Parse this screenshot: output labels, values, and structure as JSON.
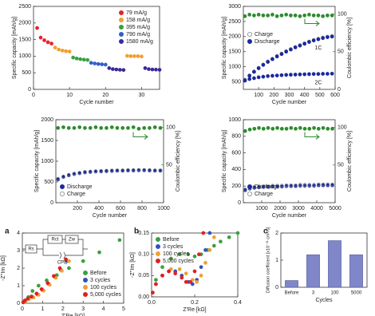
{
  "chart_data": [
    {
      "type": "scatter",
      "xlabel": "Cycle number",
      "ylabel": "Specific capacity [mAh/g]",
      "xlim": [
        0,
        35
      ],
      "xticks": [
        0,
        10,
        20,
        30
      ],
      "ylim": [
        0,
        2500
      ],
      "yticks": [
        0,
        500,
        1000,
        1500,
        2000,
        2500
      ],
      "legend": "upper right",
      "series": [
        {
          "name": "79 mA/g",
          "color": "#e8202a",
          "x": [
            1,
            2,
            3,
            4,
            5
          ],
          "values": [
            1850,
            1560,
            1480,
            1420,
            1380
          ]
        },
        {
          "name": "158 mA/g",
          "color": "#f0a030",
          "x": [
            6,
            7,
            8,
            9,
            10,
            26,
            27,
            28,
            29,
            30
          ],
          "values": [
            1260,
            1200,
            1170,
            1150,
            1140,
            1010,
            1000,
            1000,
            1000,
            990
          ]
        },
        {
          "name": "395 mA/g",
          "color": "#3aa040",
          "x": [
            11,
            12,
            13,
            14,
            15
          ],
          "values": [
            960,
            930,
            910,
            895,
            885
          ]
        },
        {
          "name": "790 mA/g",
          "color": "#3060c8",
          "x": [
            16,
            17,
            18,
            19,
            20
          ],
          "values": [
            800,
            780,
            765,
            755,
            745
          ]
        },
        {
          "name": "1580 mA/g",
          "color": "#3a2a9a",
          "x": [
            21,
            22,
            23,
            24,
            25,
            31,
            32,
            33,
            34,
            35
          ],
          "values": [
            640,
            610,
            600,
            590,
            585,
            640,
            610,
            600,
            595,
            590
          ]
        }
      ]
    },
    {
      "type": "scatter",
      "xlabel": "Cycle number",
      "ylabel": "Specific capacity [mAh/g]",
      "y2label": "Coulombic efficiency [%]",
      "xlim": [
        0,
        600
      ],
      "xticks": [
        100,
        200,
        300,
        400,
        500,
        600
      ],
      "ylim": [
        250,
        3000
      ],
      "yticks": [
        500,
        1000,
        1500,
        2000,
        2500,
        3000
      ],
      "y2lim": [
        0,
        110
      ],
      "y2ticks": [
        0,
        50,
        100
      ],
      "legend": "center left",
      "series": [
        {
          "name": "Charge",
          "color": "#888888",
          "filled": false,
          "x": [
            10,
            40,
            70,
            100,
            130,
            160,
            190,
            220,
            250,
            280,
            310,
            340,
            370,
            400,
            430,
            460,
            490,
            520,
            550,
            580
          ],
          "values": [
            570,
            715,
            845,
            965,
            1075,
            1175,
            1265,
            1355,
            1435,
            1515,
            1585,
            1655,
            1715,
            1775,
            1835,
            1885,
            1925,
            1965,
            1995,
            2015
          ]
        },
        {
          "name": "Discharge",
          "label": "1C",
          "color": "#1a2a9c",
          "x": [
            10,
            40,
            70,
            100,
            130,
            160,
            190,
            220,
            250,
            280,
            310,
            340,
            370,
            400,
            430,
            460,
            490,
            520,
            550,
            580
          ],
          "values": [
            550,
            700,
            830,
            950,
            1060,
            1160,
            1250,
            1340,
            1420,
            1500,
            1570,
            1640,
            1700,
            1760,
            1820,
            1870,
            1910,
            1950,
            1980,
            2000
          ]
        },
        {
          "label": "2C",
          "color": "#1a2a9c",
          "x": [
            10,
            40,
            70,
            100,
            130,
            160,
            190,
            220,
            250,
            280,
            310,
            340,
            370,
            400,
            430,
            460,
            490,
            520,
            550,
            580
          ],
          "values": [
            540,
            590,
            620,
            650,
            670,
            690,
            700,
            710,
            720,
            730,
            735,
            740,
            745,
            750,
            755,
            760,
            760,
            765,
            765,
            770
          ]
        },
        {
          "axis": "y2",
          "color": "#2e8b2e",
          "x": [
            10,
            40,
            70,
            100,
            130,
            160,
            190,
            220,
            250,
            280,
            310,
            340,
            370,
            400,
            430,
            460,
            490,
            520,
            550,
            580
          ],
          "values": [
            97,
            99,
            98,
            99,
            98,
            98,
            99,
            97,
            98,
            99,
            98,
            98,
            97,
            98,
            99,
            98,
            98,
            97,
            98,
            98
          ]
        }
      ]
    },
    {
      "type": "scatter",
      "xlabel": "Cycle number",
      "ylabel": "Specific capacity [mAh/g]",
      "y2label": "Coulombic efficiency [%]",
      "xlim": [
        0,
        1000
      ],
      "xticks": [
        200,
        400,
        600,
        800,
        1000
      ],
      "ylim": [
        0,
        2000
      ],
      "yticks": [
        0,
        500,
        1000,
        1500,
        2000
      ],
      "y2lim": [
        0,
        110
      ],
      "y2ticks": [
        50,
        100
      ],
      "legend": "lower left",
      "series": [
        {
          "name": "Discharge",
          "color": "#1a2a9c",
          "x": [
            20,
            70,
            120,
            170,
            220,
            270,
            320,
            370,
            420,
            470,
            520,
            570,
            620,
            670,
            720,
            770,
            820,
            870,
            920,
            970
          ],
          "values": [
            560,
            620,
            660,
            690,
            710,
            730,
            740,
            750,
            755,
            760,
            765,
            770,
            770,
            775,
            775,
            780,
            780,
            775,
            770,
            770
          ]
        },
        {
          "name": "Charge",
          "color": "#888888",
          "filled": false,
          "x": [
            20,
            70,
            120,
            170,
            220,
            270,
            320,
            370,
            420,
            470,
            520,
            570,
            620,
            670,
            720,
            770,
            820,
            870,
            920,
            970
          ],
          "values": [
            575,
            630,
            670,
            700,
            720,
            740,
            750,
            760,
            765,
            770,
            775,
            780,
            780,
            785,
            785,
            790,
            790,
            785,
            780,
            780
          ]
        },
        {
          "axis": "y2",
          "color": "#2e8b2e",
          "x": [
            20,
            70,
            120,
            170,
            220,
            270,
            320,
            370,
            420,
            470,
            520,
            570,
            620,
            670,
            720,
            770,
            820,
            870,
            920,
            970
          ],
          "values": [
            99,
            100,
            99,
            99,
            100,
            99,
            99,
            100,
            99,
            99,
            100,
            99,
            99,
            99,
            100,
            98,
            99,
            99,
            100,
            99
          ]
        }
      ]
    },
    {
      "type": "scatter",
      "xlabel": "Cycle number",
      "ylabel": "Specific capacity [mAh/g]",
      "y2label": "Coulombic efficiency [%]",
      "xlim": [
        0,
        5000
      ],
      "xticks": [
        1000,
        2000,
        3000,
        4000,
        5000
      ],
      "ylim": [
        0,
        1000
      ],
      "yticks": [
        0,
        200,
        400,
        600,
        800,
        1000
      ],
      "y2lim": [
        0,
        110
      ],
      "y2ticks": [
        50,
        100
      ],
      "legend": "lower left",
      "series": [
        {
          "name": "Discharge",
          "color": "#1a2a9c",
          "x": [
            100,
            350,
            600,
            850,
            1100,
            1350,
            1600,
            1850,
            2100,
            2350,
            2600,
            2850,
            3100,
            3350,
            3600,
            3850,
            4100,
            4350,
            4600,
            4850
          ],
          "values": [
            150,
            170,
            180,
            185,
            190,
            190,
            195,
            195,
            195,
            200,
            200,
            200,
            205,
            205,
            205,
            205,
            210,
            210,
            210,
            210
          ]
        },
        {
          "name": "Charge",
          "color": "#888888",
          "filled": false,
          "x": [
            100,
            350,
            600,
            850,
            1100,
            1350,
            1600,
            1850,
            2100,
            2350,
            2600,
            2850,
            3100,
            3350,
            3600,
            3850,
            4100,
            4350,
            4600,
            4850
          ],
          "values": [
            160,
            180,
            190,
            195,
            200,
            200,
            205,
            205,
            205,
            210,
            210,
            210,
            215,
            215,
            215,
            215,
            220,
            220,
            220,
            220
          ]
        },
        {
          "axis": "y2",
          "color": "#2e8b2e",
          "x": [
            100,
            350,
            600,
            850,
            1100,
            1350,
            1600,
            1850,
            2100,
            2350,
            2600,
            2850,
            3100,
            3350,
            3600,
            3850,
            4100,
            4350,
            4600,
            4850
          ],
          "values": [
            95,
            97,
            98,
            99,
            98,
            99,
            98,
            99,
            98,
            98,
            99,
            98,
            99,
            98,
            98,
            99,
            98,
            99,
            98,
            98
          ]
        }
      ]
    },
    {
      "type": "scatter",
      "panel": "a",
      "xlabel": "Z'Re [kΩ]",
      "ylabel": "-Z''Im [kΩ]",
      "circuit": [
        "Rs",
        "Rct",
        "Zw",
        "CPE"
      ],
      "xlim": [
        0,
        5
      ],
      "xticks": [
        0,
        1,
        2,
        3,
        4,
        5
      ],
      "ylim": [
        0,
        4
      ],
      "yticks": [
        0,
        1,
        2,
        3,
        4
      ],
      "legend": "lower right",
      "series": [
        {
          "name": "Before",
          "color": "#3aa040",
          "x": [
            0.1,
            0.3,
            0.5,
            0.8,
            1.2,
            1.7,
            2.3,
            3.0,
            3.8,
            4.8
          ],
          "values": [
            0.1,
            0.35,
            0.7,
            1.0,
            1.3,
            1.6,
            2.0,
            2.4,
            2.9,
            3.6
          ]
        },
        {
          "name": "3 cycles",
          "color": "#3050c8",
          "x": [
            0.05,
            0.15,
            0.3,
            0.5,
            0.75,
            1.0,
            1.3,
            1.6,
            1.9,
            2.2
          ],
          "values": [
            0.05,
            0.15,
            0.25,
            0.35,
            0.5,
            0.75,
            1.1,
            1.5,
            1.9,
            2.4
          ]
        },
        {
          "name": "100 cycles",
          "color": "#f0a030",
          "x": [
            0.06,
            0.17,
            0.33,
            0.55,
            0.8,
            1.05,
            1.35,
            1.65,
            1.95,
            2.3
          ],
          "values": [
            0.05,
            0.14,
            0.24,
            0.33,
            0.48,
            0.72,
            1.05,
            1.45,
            1.85,
            2.4
          ]
        },
        {
          "name": "5,000 cycles",
          "color": "#e02020",
          "x": [
            0.04,
            0.13,
            0.27,
            0.45,
            0.7,
            0.95,
            1.25,
            1.55,
            1.85,
            2.15
          ],
          "values": [
            0.05,
            0.16,
            0.27,
            0.38,
            0.55,
            0.8,
            1.15,
            1.55,
            2.0,
            2.5
          ]
        }
      ]
    },
    {
      "type": "scatter",
      "panel": "b",
      "xlabel": "Z'Re [kΩ]",
      "ylabel": "-Z''Im [kΩ]",
      "xlim": [
        0,
        0.4
      ],
      "xticks": [
        {
          "value": 0,
          "label": "0.0"
        },
        0.2,
        0.4
      ],
      "ylim": [
        0,
        0.15
      ],
      "yticks": [
        {
          "value": 0,
          "label": "0.00"
        },
        0.05,
        {
          "value": 0.1,
          "label": "0.10"
        },
        0.15
      ],
      "legend": "upper left",
      "series": [
        {
          "name": "Before",
          "color": "#3aa040",
          "x": [
            0.005,
            0.02,
            0.05,
            0.09,
            0.13,
            0.17,
            0.2,
            0.23,
            0.26,
            0.29,
            0.32,
            0.36,
            0.4
          ],
          "values": [
            0.01,
            0.04,
            0.07,
            0.09,
            0.1,
            0.1,
            0.095,
            0.1,
            0.11,
            0.12,
            0.13,
            0.14,
            0.15
          ]
        },
        {
          "name": "3 cycles",
          "color": "#3050c8",
          "x": [
            0.005,
            0.02,
            0.05,
            0.08,
            0.11,
            0.14,
            0.17,
            0.19,
            0.21,
            0.23,
            0.25,
            0.27
          ],
          "values": [
            0.01,
            0.03,
            0.05,
            0.06,
            0.06,
            0.05,
            0.035,
            0.03,
            0.04,
            0.07,
            0.11,
            0.15
          ]
        },
        {
          "name": "100 cycles",
          "color": "#f0a030",
          "x": [
            0.005,
            0.02,
            0.05,
            0.09,
            0.13,
            0.16,
            0.19,
            0.21,
            0.23,
            0.25,
            0.27,
            0.29
          ],
          "values": [
            0.01,
            0.03,
            0.05,
            0.065,
            0.065,
            0.055,
            0.04,
            0.035,
            0.05,
            0.08,
            0.11,
            0.14
          ]
        },
        {
          "name": "5,000 cycles",
          "color": "#e02020",
          "x": [
            0.005,
            0.02,
            0.05,
            0.08,
            0.11,
            0.14,
            0.16,
            0.18,
            0.2,
            0.22,
            0.24
          ],
          "values": [
            0.01,
            0.03,
            0.05,
            0.06,
            0.055,
            0.045,
            0.035,
            0.035,
            0.06,
            0.1,
            0.15
          ]
        }
      ]
    },
    {
      "type": "bar",
      "panel": "c",
      "xlabel": "Cycles",
      "ylabel": "Diffusion coefficient [x10⁻¹¹ cm²/s]",
      "categories": [
        "Before",
        "3",
        "100",
        "5000"
      ],
      "values": [
        0.25,
        1.2,
        1.72,
        1.2
      ],
      "color": "#7f87c9",
      "ylim": [
        0,
        2
      ],
      "yticks": [
        0,
        1,
        2
      ]
    }
  ]
}
